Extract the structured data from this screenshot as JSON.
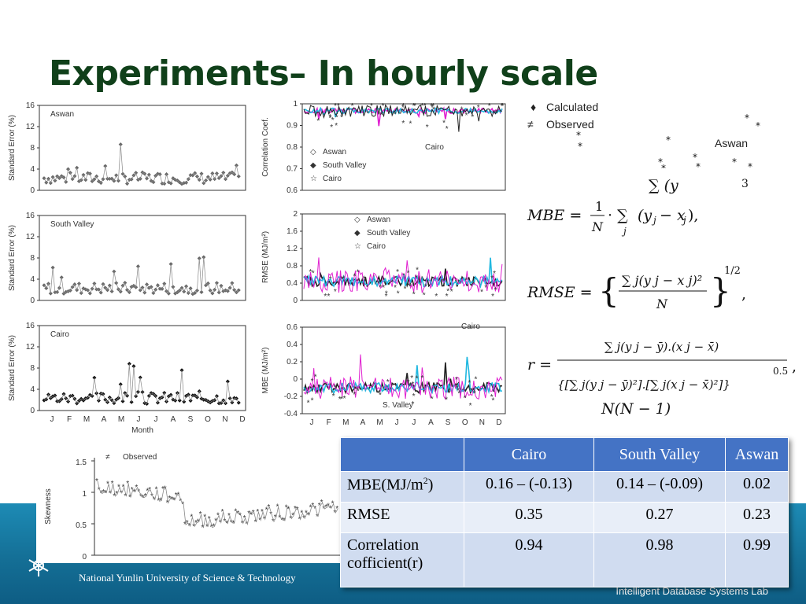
{
  "slide": {
    "title": "Experiments– In hourly scale",
    "footer_left": "National Yunlin University of Science & Technology",
    "footer_right": "Intelligent Database Systems Lab"
  },
  "left_charts": {
    "ylabel": "Standard Error (%)",
    "panels": [
      {
        "label": "Aswan",
        "y_ticks": [
          "16",
          "12",
          "8",
          "4",
          "0"
        ]
      },
      {
        "label": "South Valley",
        "y_ticks": [
          "16",
          "12",
          "8",
          "4",
          "0"
        ]
      },
      {
        "label": "Cairo",
        "y_ticks": [
          "16",
          "12",
          "8",
          "4",
          "0"
        ]
      }
    ],
    "months": [
      "J",
      "F",
      "M",
      "A",
      "M",
      "J",
      "J",
      "A",
      "S",
      "O",
      "N",
      "D"
    ],
    "xlabel": "Month"
  },
  "mid_charts": {
    "correlation": {
      "ylabel": "Correlation Coef.",
      "y_ticks": [
        "1",
        "0.9",
        "0.8",
        "0.7",
        "0.6"
      ],
      "legend": [
        "Aswan",
        "South Valley",
        "Cairo"
      ],
      "annotation": "Cairo"
    },
    "rmse": {
      "ylabel": "RMSE (MJ/m²)",
      "y_ticks": [
        "2",
        "1.6",
        "1.2",
        "0.8",
        "0.4",
        "0"
      ],
      "legend": [
        "Aswan",
        "South Valley",
        "Cairo"
      ]
    },
    "mbe": {
      "ylabel": "MBE (MJ/m²)",
      "y_ticks": [
        "0.6",
        "0.4",
        "0.2",
        "0",
        "-0.2",
        "-0.4"
      ],
      "annotation_top": "Cairo",
      "annotation_bottom": "S. Valley",
      "months": [
        "J",
        "F",
        "M",
        "A",
        "M",
        "J",
        "J",
        "A",
        "S",
        "O",
        "N",
        "D"
      ]
    }
  },
  "right_legend": {
    "items": [
      "Calculated",
      "Observed"
    ],
    "label": "Aswan"
  },
  "skew_chart": {
    "ylabel": "Skewness",
    "legend": "Observed",
    "y_ticks": [
      "1.5",
      "1",
      "0.5",
      "0"
    ]
  },
  "results_table": {
    "headers": [
      "",
      "Cairo",
      "South Valley",
      "Aswan"
    ],
    "rows": [
      {
        "label": "MBE(MJ/m",
        "label_sup": "2",
        "label_end": ")",
        "cairo": "0.16 – (-0.13)",
        "south_valley": "0.14 – (-0.09)",
        "aswan": "0.02"
      },
      {
        "label": "RMSE",
        "label_sup": "",
        "label_end": "",
        "cairo": "0.35",
        "south_valley": "0.27",
        "aswan": "0.23"
      },
      {
        "label": "Correlation cofficient(r)",
        "label_sup": "",
        "label_end": "",
        "cairo": "0.94",
        "south_valley": "0.98",
        "aswan": "0.99"
      }
    ]
  },
  "colors": {
    "title": "#10401a",
    "band": "#146f96",
    "table_header": "#4473c5",
    "series_magenta": "#e020d0",
    "series_cyan": "#20b8e0"
  }
}
